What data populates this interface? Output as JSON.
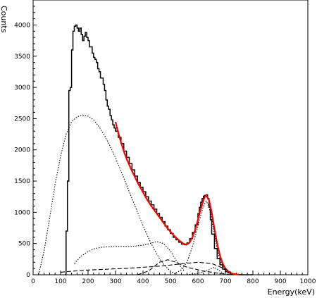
{
  "chart_data": {
    "type": "line",
    "title": "",
    "xlabel": "Energy(keV)",
    "ylabel": "Counts",
    "xlim": [
      0,
      1000
    ],
    "ylim": [
      0,
      4400
    ],
    "x_ticks": [
      0,
      100,
      200,
      300,
      400,
      500,
      600,
      700,
      800,
      900,
      1000
    ],
    "y_ticks": [
      0,
      500,
      1000,
      1500,
      2000,
      2500,
      3000,
      3500,
      4000
    ],
    "grid": false,
    "legend": "none",
    "series": [
      {
        "style": "histogram",
        "color": "#000000",
        "x": [
          115,
          120,
          125,
          130,
          135,
          140,
          145,
          150,
          155,
          160,
          165,
          170,
          175,
          180,
          185,
          190,
          195,
          200,
          205,
          210,
          215,
          220,
          225,
          230,
          235,
          240,
          245,
          250,
          255,
          260,
          265,
          270,
          275,
          280,
          285,
          290,
          295,
          300,
          310,
          320,
          330,
          340,
          350,
          360,
          370,
          380,
          390,
          400,
          410,
          420,
          430,
          440,
          450,
          460,
          470,
          480,
          490,
          500,
          510,
          520,
          530,
          540,
          550,
          560,
          570,
          580,
          590,
          600,
          605,
          610,
          615,
          620,
          625,
          630,
          635,
          640,
          645,
          650,
          660,
          670,
          680,
          690,
          700,
          710,
          720,
          730,
          740,
          750,
          760,
          770,
          780,
          790,
          800
        ],
        "y": [
          0,
          700,
          1500,
          2950,
          3000,
          3600,
          3900,
          3980,
          4000,
          3950,
          3900,
          3950,
          3850,
          3750,
          3820,
          3880,
          3800,
          3750,
          3650,
          3650,
          3550,
          3480,
          3450,
          3400,
          3300,
          3250,
          3150,
          3150,
          3050,
          2950,
          2800,
          2700,
          2650,
          2550,
          2480,
          2400,
          2350,
          2300,
          2200,
          2100,
          1980,
          1880,
          1780,
          1680,
          1580,
          1480,
          1400,
          1330,
          1250,
          1180,
          1120,
          1050,
          980,
          920,
          850,
          780,
          720,
          660,
          600,
          560,
          520,
          490,
          480,
          510,
          580,
          680,
          800,
          980,
          1080,
          1160,
          1220,
          1260,
          1270,
          1280,
          1220,
          1080,
          880,
          650,
          420,
          260,
          160,
          90,
          50,
          30,
          15,
          8,
          3,
          1,
          0,
          0,
          0,
          0,
          0
        ]
      },
      {
        "style": "fit",
        "color": "#ff0000",
        "x": [
          300,
          310,
          320,
          330,
          340,
          350,
          360,
          370,
          380,
          390,
          400,
          410,
          420,
          430,
          440,
          450,
          460,
          470,
          480,
          490,
          500,
          510,
          520,
          530,
          540,
          550,
          560,
          570,
          580,
          590,
          600,
          610,
          620,
          625,
          630,
          640,
          650,
          660,
          670,
          680,
          690,
          700,
          710,
          720,
          730,
          740,
          750
        ],
        "y": [
          2450,
          2270,
          2120,
          1980,
          1860,
          1760,
          1660,
          1570,
          1480,
          1400,
          1320,
          1240,
          1170,
          1100,
          1040,
          980,
          920,
          860,
          800,
          740,
          690,
          640,
          595,
          555,
          520,
          490,
          485,
          520,
          600,
          720,
          880,
          1050,
          1190,
          1250,
          1270,
          1200,
          1000,
          740,
          500,
          310,
          180,
          100,
          55,
          28,
          14,
          6,
          2
        ]
      },
      {
        "style": "dotted",
        "color": "#000000",
        "x": [
          20,
          40,
          60,
          80,
          100,
          120,
          140,
          160,
          180,
          200,
          220,
          240,
          260,
          280,
          300,
          320,
          340,
          360,
          380,
          400,
          420,
          440,
          460,
          480,
          500,
          520
        ],
        "y": [
          0,
          380,
          900,
          1450,
          1900,
          2250,
          2450,
          2530,
          2560,
          2540,
          2480,
          2370,
          2230,
          2060,
          1870,
          1660,
          1440,
          1220,
          1000,
          790,
          590,
          410,
          260,
          140,
          60,
          0
        ]
      },
      {
        "style": "dotted",
        "color": "#000000",
        "x": [
          150,
          175,
          200,
          225,
          250,
          275,
          300,
          325,
          350,
          375,
          400,
          425,
          450,
          475,
          500,
          525,
          550
        ],
        "y": [
          180,
          300,
          370,
          420,
          440,
          450,
          455,
          455,
          455,
          460,
          475,
          500,
          530,
          500,
          380,
          200,
          60
        ]
      },
      {
        "style": "dotted",
        "color": "#000000",
        "x": [
          520,
          540,
          560,
          580,
          600,
          610,
          620,
          630,
          640,
          650,
          660,
          670,
          680,
          700,
          720
        ],
        "y": [
          30,
          80,
          200,
          450,
          780,
          950,
          1100,
          1180,
          1100,
          900,
          650,
          420,
          230,
          60,
          10
        ]
      },
      {
        "style": "dashed",
        "color": "#000000",
        "x": [
          100,
          150,
          200,
          250,
          300,
          350,
          400,
          450,
          500,
          550,
          600,
          650,
          700,
          720
        ],
        "y": [
          40,
          60,
          75,
          85,
          95,
          105,
          120,
          135,
          155,
          180,
          200,
          180,
          90,
          40
        ]
      },
      {
        "style": "dashed",
        "color": "#000000",
        "x": [
          380,
          420,
          460,
          490,
          520,
          560,
          620,
          680,
          720
        ],
        "y": [
          0,
          60,
          200,
          240,
          200,
          120,
          60,
          20,
          0
        ]
      },
      {
        "style": "dotted",
        "color": "#000000",
        "x": [
          560,
          600,
          630,
          660,
          680,
          700
        ],
        "y": [
          0,
          20,
          60,
          120,
          60,
          0
        ]
      }
    ]
  }
}
